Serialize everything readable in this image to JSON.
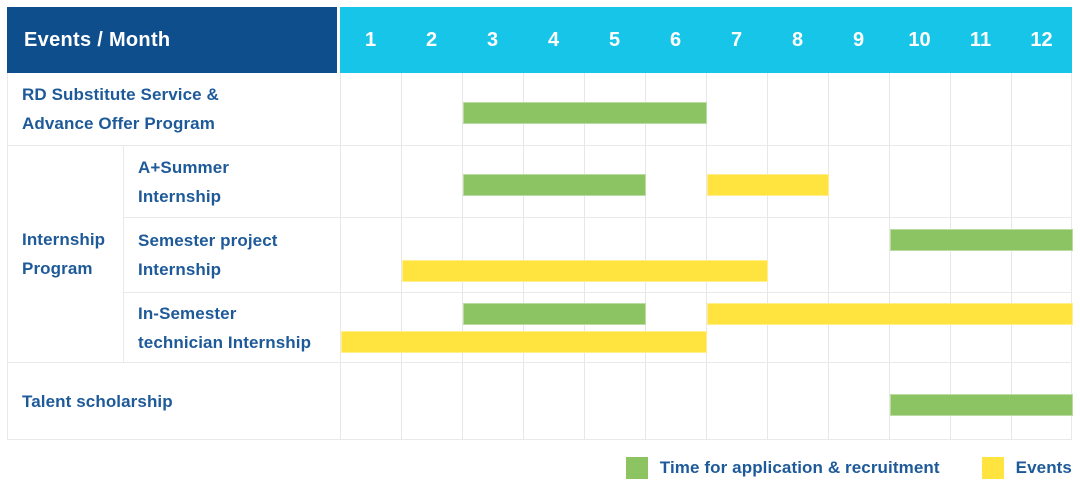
{
  "header": {
    "corner_label": "Events / Month"
  },
  "colors": {
    "header_bg": "#0F4E8C",
    "months_bg": "#17C5E8",
    "label_text": "#1E5A99",
    "application": "#8CC464",
    "event": "#FFE33E",
    "grid_line": "#E7E7E7",
    "border": "#E9E9E9"
  },
  "chart_data": {
    "type": "bar",
    "subtype": "gantt-schedule",
    "title": "Events / Month",
    "months": [
      "1",
      "2",
      "3",
      "4",
      "5",
      "6",
      "7",
      "8",
      "9",
      "10",
      "11",
      "12"
    ],
    "x_range": [
      1,
      12
    ],
    "legend_position": "bottom-right",
    "groups": [
      {
        "id": "internship-program",
        "label_lines": [
          "Internship",
          "Program"
        ],
        "first_row_index": 1,
        "row_span": 3
      }
    ],
    "rows": [
      {
        "id": "rd-substitute-service",
        "label_lines": [
          "RD Substitute Service &",
          "Advance Offer Program"
        ],
        "bars": [
          {
            "kind": "application",
            "start_month": 3,
            "end_month": 6,
            "lane": "single"
          }
        ]
      },
      {
        "id": "a-plus-summer-internship",
        "group": "internship-program",
        "label_lines": [
          "A+Summer",
          "Internship"
        ],
        "bars": [
          {
            "kind": "application",
            "start_month": 3,
            "end_month": 5,
            "lane": "single"
          },
          {
            "kind": "event",
            "start_month": 7,
            "end_month": 8,
            "lane": "single"
          }
        ]
      },
      {
        "id": "semester-project-internship",
        "group": "internship-program",
        "label_lines": [
          "Semester project",
          "Internship"
        ],
        "bars": [
          {
            "kind": "application",
            "start_month": 10,
            "end_month": 12,
            "lane": "top"
          },
          {
            "kind": "event",
            "start_month": 2,
            "end_month": 7,
            "lane": "bottom"
          }
        ]
      },
      {
        "id": "in-semester-technician-internship",
        "group": "internship-program",
        "label_lines": [
          "In-Semester",
          "technician Internship"
        ],
        "bars": [
          {
            "kind": "application",
            "start_month": 3,
            "end_month": 5,
            "lane": "top"
          },
          {
            "kind": "event",
            "start_month": 7,
            "end_month": 12,
            "lane": "top"
          },
          {
            "kind": "event",
            "start_month": 1,
            "end_month": 6,
            "lane": "bottom"
          }
        ]
      },
      {
        "id": "talent-scholarship",
        "label_lines": [
          "Talent scholarship"
        ],
        "bars": [
          {
            "kind": "application",
            "start_month": 10,
            "end_month": 12,
            "lane": "single"
          }
        ]
      }
    ],
    "legend": [
      {
        "label": "Time for application & recruitment",
        "kind": "application",
        "color": "#8CC464"
      },
      {
        "label": "Events",
        "kind": "event",
        "color": "#FFE33E"
      }
    ]
  }
}
